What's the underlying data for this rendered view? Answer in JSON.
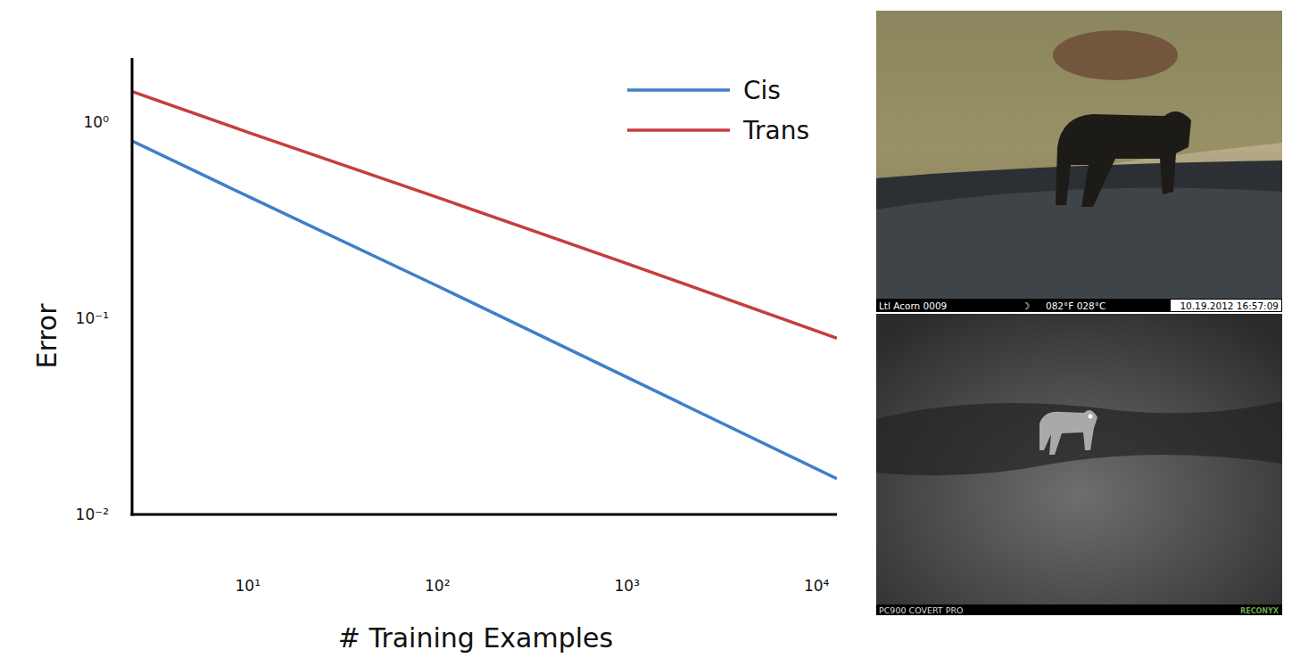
{
  "chart_data": {
    "type": "line",
    "x_label": "# Training Examples",
    "y_label": "Error",
    "log": true,
    "grid": false,
    "legend": "top-right",
    "x": [
      2.45,
      10,
      100,
      1000,
      12800
    ],
    "series": [
      {
        "name": "Cis",
        "color": "#3f7fc8",
        "values": [
          0.8,
          0.418,
          0.146,
          0.05,
          0.0152
        ]
      },
      {
        "name": "Trans",
        "color": "#c63d3f",
        "values": [
          1.43,
          0.887,
          0.413,
          0.19,
          0.079
        ]
      }
    ],
    "xlim": [
      2.45,
      12800
    ],
    "ylim": [
      0.01,
      2.12
    ],
    "xticks": [
      {
        "value": 10,
        "label": "10¹"
      },
      {
        "value": 100,
        "label": "10²"
      },
      {
        "value": 1000,
        "label": "10³"
      },
      {
        "value": 10000,
        "label": "10⁴"
      }
    ],
    "yticks": [
      {
        "value": 0.01,
        "label": "10⁻²"
      },
      {
        "value": 0.1,
        "label": "10⁻¹"
      },
      {
        "value": 1,
        "label": "10⁰"
      }
    ]
  },
  "images": [
    {
      "texts": [
        "Ltl Acorn 0009",
        "☽",
        "082°F 028°C",
        "10.19.2012 16:57:09"
      ]
    },
    {
      "texts": [
        "PC900 COVERT PRO",
        "RECONYX"
      ]
    }
  ]
}
